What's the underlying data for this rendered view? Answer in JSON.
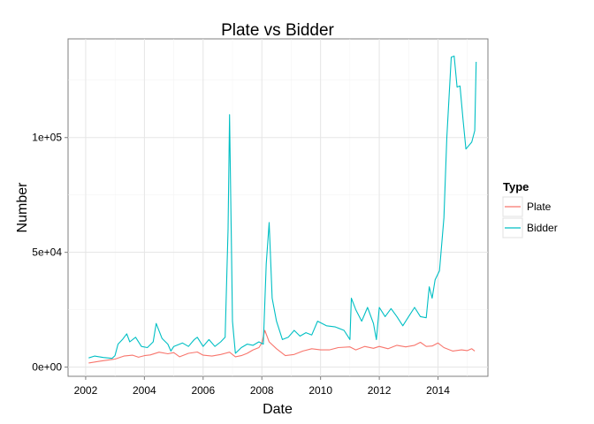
{
  "chart_data": {
    "type": "line",
    "title": "Plate vs Bidder",
    "xlabel": "Date",
    "ylabel": "Number",
    "x_ticks": [
      "2002",
      "2004",
      "2006",
      "2008",
      "2010",
      "2012",
      "2014"
    ],
    "x_tick_values": [
      2002,
      2004,
      2006,
      2008,
      2010,
      2012,
      2014
    ],
    "y_ticks": [
      "0e+00",
      "5e+04",
      "1e+05"
    ],
    "y_tick_values": [
      0,
      50000,
      100000
    ],
    "xlim": [
      2001.4,
      2015.7
    ],
    "ylim": [
      -4000,
      143000
    ],
    "grid": true,
    "legend": {
      "title": "Type",
      "position": "right"
    },
    "series": [
      {
        "name": "Plate",
        "color": "#F8766D",
        "points": [
          [
            2002.1,
            1800
          ],
          [
            2002.5,
            2600
          ],
          [
            2003.0,
            3500
          ],
          [
            2003.3,
            4800
          ],
          [
            2003.6,
            5200
          ],
          [
            2003.8,
            4300
          ],
          [
            2004.0,
            5000
          ],
          [
            2004.2,
            5300
          ],
          [
            2004.5,
            6500
          ],
          [
            2004.8,
            5800
          ],
          [
            2005.0,
            6300
          ],
          [
            2005.2,
            4500
          ],
          [
            2005.5,
            6000
          ],
          [
            2005.8,
            6600
          ],
          [
            2006.0,
            5200
          ],
          [
            2006.3,
            4800
          ],
          [
            2006.6,
            5500
          ],
          [
            2006.9,
            6500
          ],
          [
            2007.1,
            4500
          ],
          [
            2007.3,
            5000
          ],
          [
            2007.5,
            6000
          ],
          [
            2007.7,
            7500
          ],
          [
            2007.9,
            8500
          ],
          [
            2008.0,
            10500
          ],
          [
            2008.1,
            16000
          ],
          [
            2008.25,
            11000
          ],
          [
            2008.5,
            8000
          ],
          [
            2008.8,
            5000
          ],
          [
            2009.1,
            5500
          ],
          [
            2009.4,
            7000
          ],
          [
            2009.7,
            8000
          ],
          [
            2010.0,
            7500
          ],
          [
            2010.3,
            7500
          ],
          [
            2010.6,
            8500
          ],
          [
            2011.0,
            8800
          ],
          [
            2011.2,
            7500
          ],
          [
            2011.5,
            9000
          ],
          [
            2011.8,
            8200
          ],
          [
            2012.0,
            9000
          ],
          [
            2012.3,
            8000
          ],
          [
            2012.6,
            9500
          ],
          [
            2012.9,
            8800
          ],
          [
            2013.2,
            9500
          ],
          [
            2013.4,
            10800
          ],
          [
            2013.6,
            9000
          ],
          [
            2013.8,
            9200
          ],
          [
            2014.0,
            10500
          ],
          [
            2014.2,
            8500
          ],
          [
            2014.5,
            7000
          ],
          [
            2014.8,
            7500
          ],
          [
            2015.0,
            7200
          ],
          [
            2015.15,
            8000
          ],
          [
            2015.25,
            7000
          ]
        ]
      },
      {
        "name": "Bidder",
        "color": "#00BFC4",
        "points": [
          [
            2002.1,
            4000
          ],
          [
            2002.3,
            4800
          ],
          [
            2002.6,
            4200
          ],
          [
            2002.9,
            3800
          ],
          [
            2003.0,
            5000
          ],
          [
            2003.1,
            10000
          ],
          [
            2003.25,
            12000
          ],
          [
            2003.4,
            14500
          ],
          [
            2003.5,
            11000
          ],
          [
            2003.7,
            13000
          ],
          [
            2003.9,
            9000
          ],
          [
            2004.1,
            8500
          ],
          [
            2004.3,
            11000
          ],
          [
            2004.4,
            19000
          ],
          [
            2004.6,
            12500
          ],
          [
            2004.8,
            10000
          ],
          [
            2004.9,
            7000
          ],
          [
            2005.0,
            9000
          ],
          [
            2005.3,
            10500
          ],
          [
            2005.5,
            9000
          ],
          [
            2005.7,
            12000
          ],
          [
            2005.8,
            13000
          ],
          [
            2006.0,
            9000
          ],
          [
            2006.2,
            12000
          ],
          [
            2006.4,
            9000
          ],
          [
            2006.6,
            11000
          ],
          [
            2006.75,
            13000
          ],
          [
            2006.85,
            60000
          ],
          [
            2006.9,
            110000
          ],
          [
            2007.0,
            20000
          ],
          [
            2007.1,
            6000
          ],
          [
            2007.3,
            8500
          ],
          [
            2007.5,
            10000
          ],
          [
            2007.7,
            9500
          ],
          [
            2007.9,
            11000
          ],
          [
            2008.05,
            10000
          ],
          [
            2008.15,
            45000
          ],
          [
            2008.25,
            63000
          ],
          [
            2008.35,
            30000
          ],
          [
            2008.5,
            20000
          ],
          [
            2008.7,
            12000
          ],
          [
            2008.9,
            13000
          ],
          [
            2009.1,
            16000
          ],
          [
            2009.3,
            13500
          ],
          [
            2009.5,
            15000
          ],
          [
            2009.7,
            14000
          ],
          [
            2009.9,
            20000
          ],
          [
            2010.2,
            18000
          ],
          [
            2010.5,
            17500
          ],
          [
            2010.8,
            16000
          ],
          [
            2011.0,
            12000
          ],
          [
            2011.05,
            30000
          ],
          [
            2011.2,
            25000
          ],
          [
            2011.4,
            20000
          ],
          [
            2011.6,
            26000
          ],
          [
            2011.8,
            19000
          ],
          [
            2011.9,
            12000
          ],
          [
            2012.0,
            26000
          ],
          [
            2012.2,
            22000
          ],
          [
            2012.4,
            25500
          ],
          [
            2012.6,
            22000
          ],
          [
            2012.8,
            18000
          ],
          [
            2013.0,
            22000
          ],
          [
            2013.2,
            26000
          ],
          [
            2013.4,
            22000
          ],
          [
            2013.6,
            21500
          ],
          [
            2013.7,
            35000
          ],
          [
            2013.8,
            30000
          ],
          [
            2013.9,
            38000
          ],
          [
            2014.05,
            42000
          ],
          [
            2014.2,
            65000
          ],
          [
            2014.3,
            100000
          ],
          [
            2014.45,
            135000
          ],
          [
            2014.55,
            135500
          ],
          [
            2014.65,
            122000
          ],
          [
            2014.75,
            122500
          ],
          [
            2014.85,
            108000
          ],
          [
            2014.95,
            95000
          ],
          [
            2015.15,
            98000
          ],
          [
            2015.25,
            103000
          ],
          [
            2015.3,
            133000
          ]
        ]
      }
    ]
  }
}
